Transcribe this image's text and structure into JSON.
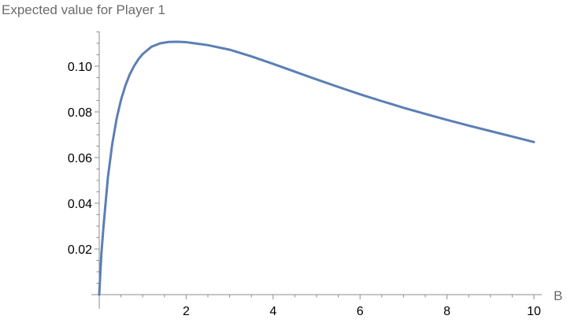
{
  "chart_data": {
    "type": "line",
    "title": "",
    "ylabel": "Expected value for Player 1",
    "xlabel": "B",
    "xlim": [
      0,
      10
    ],
    "ylim": [
      0,
      0.115
    ],
    "x_ticks": [
      2,
      4,
      6,
      8,
      10
    ],
    "y_ticks": [
      0.02,
      0.04,
      0.06,
      0.08,
      0.1
    ],
    "x_tick_labels": [
      "2",
      "4",
      "6",
      "8",
      "10"
    ],
    "y_tick_labels": [
      "0.02",
      "0.04",
      "0.06",
      "0.08",
      "0.10"
    ],
    "grid": false,
    "series": [
      {
        "color": "#5b7fb5",
        "x": [
          0,
          0.05,
          0.1,
          0.2,
          0.3,
          0.4,
          0.5,
          0.6,
          0.7,
          0.8,
          0.9,
          1.0,
          1.2,
          1.4,
          1.6,
          1.8,
          2.0,
          2.2,
          2.5,
          3.0,
          3.5,
          4.0,
          4.5,
          5.0,
          5.5,
          6.0,
          6.5,
          7.0,
          7.5,
          8.0,
          8.5,
          9.0,
          9.5,
          10.0
        ],
        "y": [
          0,
          0.018,
          0.0302,
          0.0514,
          0.066,
          0.077,
          0.0852,
          0.0914,
          0.0963,
          0.1,
          0.103,
          0.1053,
          0.1085,
          0.11,
          0.1106,
          0.1107,
          0.1105,
          0.11,
          0.1092,
          0.1072,
          0.1043,
          0.101,
          0.0976,
          0.0942,
          0.0909,
          0.0877,
          0.0847,
          0.0818,
          0.0791,
          0.0765,
          0.074,
          0.0716,
          0.0692,
          0.0668
        ]
      }
    ]
  }
}
